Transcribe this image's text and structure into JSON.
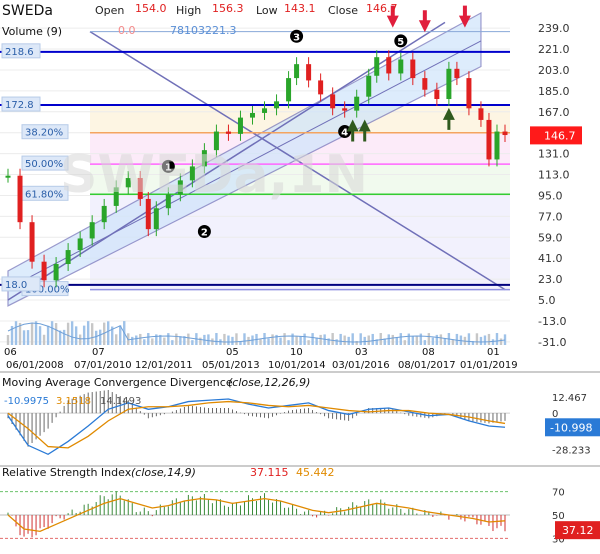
{
  "header": {
    "symbol": "SWEDa",
    "open_label": "Open",
    "open": "154.0",
    "high_label": "High",
    "high": "156.3",
    "low_label": "Low",
    "low": "143.1",
    "close_label": "Close",
    "close": "146.7",
    "volume_label": "Volume (9)",
    "volume_values": [
      "0.0",
      "78103221.3"
    ],
    "watermark": "SWEDa,1N"
  },
  "colors": {
    "up": "#2aa52a",
    "down": "#e02020",
    "channel_fill": "#cfe4fb",
    "hline": "#0000cc",
    "fib_orange": "#f4a460",
    "fib_pink": "#ff66ff",
    "fib_green": "#33cc33",
    "trend_line": "#7070b8",
    "price_badge": "#ff1a1a"
  },
  "chart_data": [
    {
      "type": "candlestick",
      "title": "SWEDa",
      "ylim": [
        -38,
        246
      ],
      "y_ticks": [
        "239.0",
        "221.0",
        "203.0",
        "185.0",
        "167.0",
        "149.0",
        "131.0",
        "113.0",
        "95.0",
        "77.0",
        "59.0",
        "41.0",
        "23.0",
        "5.0",
        "-13.0",
        "-31.0"
      ],
      "x_ticks": [
        "06",
        "06/01/2008",
        "07",
        "07/01/2010",
        "12/01/2011",
        "05",
        "05/01/2013",
        "10",
        "10/01/2014",
        "03",
        "03/01/2016",
        "08",
        "08/01/2017",
        "01",
        "01/01/2019"
      ],
      "last_price": "146.7",
      "left_labels": [
        "218.6",
        "172.8",
        "18.0"
      ],
      "fib_levels": [
        {
          "label": "38.20%",
          "value": 149
        },
        {
          "label": "50.00%",
          "value": 122
        },
        {
          "label": "61.80%",
          "value": 96
        },
        {
          "label": "100.00%",
          "value": 14
        }
      ],
      "horizontal_lines": [
        236,
        218.6,
        172.8,
        18.0
      ],
      "markers": [
        {
          "label": "1",
          "kind": "circle-label"
        },
        {
          "label": "2",
          "kind": "circle-label"
        },
        {
          "label": "3",
          "kind": "circle-label"
        },
        {
          "label": "4",
          "kind": "circle-label"
        },
        {
          "label": "5",
          "kind": "circle-label"
        }
      ],
      "price_points": [
        [
          0,
          112
        ],
        [
          3,
          72
        ],
        [
          6,
          38
        ],
        [
          9,
          22
        ],
        [
          12,
          36
        ],
        [
          15,
          48
        ],
        [
          18,
          58
        ],
        [
          21,
          72
        ],
        [
          24,
          86
        ],
        [
          27,
          102
        ],
        [
          30,
          110
        ],
        [
          33,
          92
        ],
        [
          35,
          66
        ],
        [
          37,
          84
        ],
        [
          40,
          96
        ],
        [
          43,
          108
        ],
        [
          46,
          120
        ],
        [
          49,
          134
        ],
        [
          52,
          150
        ],
        [
          55,
          148
        ],
        [
          58,
          162
        ],
        [
          61,
          166
        ],
        [
          64,
          170
        ],
        [
          67,
          176
        ],
        [
          70,
          196
        ],
        [
          72,
          208
        ],
        [
          75,
          194
        ],
        [
          78,
          182
        ],
        [
          81,
          170
        ],
        [
          84,
          168
        ],
        [
          87,
          180
        ],
        [
          90,
          198
        ],
        [
          92,
          214
        ],
        [
          95,
          200
        ],
        [
          98,
          212
        ],
        [
          101,
          196
        ],
        [
          104,
          186
        ],
        [
          107,
          178
        ],
        [
          110,
          204
        ],
        [
          112,
          196
        ],
        [
          115,
          170
        ],
        [
          118,
          160
        ],
        [
          120,
          126
        ],
        [
          122,
          150
        ],
        [
          124,
          147
        ]
      ]
    },
    {
      "type": "line",
      "title": "Moving Average Convergence Divergence",
      "params": "(close,12,26,9)",
      "ylim": [
        -38,
        18
      ],
      "y_ticks": [
        "12.467",
        "0",
        "-28.233"
      ],
      "readouts": [
        "-10.9975",
        "3.1518",
        "14.1493"
      ],
      "last_value": "-10.998",
      "series": [
        {
          "values": [
            [
              0,
              -2
            ],
            [
              5,
              -25
            ],
            [
              10,
              -32
            ],
            [
              15,
              -22
            ],
            [
              20,
              -10
            ],
            [
              25,
              3
            ],
            [
              30,
              8
            ],
            [
              35,
              3
            ],
            [
              40,
              5
            ],
            [
              45,
              9
            ],
            [
              50,
              10
            ],
            [
              55,
              11
            ],
            [
              60,
              7
            ],
            [
              65,
              4
            ],
            [
              70,
              6
            ],
            [
              75,
              8
            ],
            [
              80,
              2
            ],
            [
              85,
              -1
            ],
            [
              90,
              3
            ],
            [
              95,
              4
            ],
            [
              100,
              1
            ],
            [
              105,
              -2
            ],
            [
              110,
              -1
            ],
            [
              115,
              -6
            ],
            [
              120,
              -10
            ],
            [
              124,
              -11
            ]
          ]
        },
        {
          "values": [
            [
              0,
              0
            ],
            [
              5,
              -12
            ],
            [
              10,
              -26
            ],
            [
              15,
              -27
            ],
            [
              20,
              -18
            ],
            [
              25,
              -6
            ],
            [
              30,
              3
            ],
            [
              35,
              5
            ],
            [
              40,
              5
            ],
            [
              45,
              6
            ],
            [
              50,
              8
            ],
            [
              55,
              9
            ],
            [
              60,
              8
            ],
            [
              65,
              6
            ],
            [
              70,
              5
            ],
            [
              75,
              6
            ],
            [
              80,
              4
            ],
            [
              85,
              2
            ],
            [
              90,
              1
            ],
            [
              95,
              2
            ],
            [
              100,
              2
            ],
            [
              105,
              0
            ],
            [
              110,
              -1
            ],
            [
              115,
              -3
            ],
            [
              120,
              -6
            ],
            [
              124,
              -8
            ]
          ]
        }
      ]
    },
    {
      "type": "line",
      "title": "Relative Strength Index",
      "params": "(close,14,9)",
      "ylim": [
        20,
        80
      ],
      "y_ticks": [
        "70",
        "50",
        "30"
      ],
      "annotations": [
        "37.115",
        "45.442"
      ],
      "last_value": "37.12",
      "series": [
        {
          "values": [
            [
              0,
              52
            ],
            [
              4,
              30
            ],
            [
              8,
              36
            ],
            [
              12,
              46
            ],
            [
              16,
              52
            ],
            [
              20,
              58
            ],
            [
              24,
              66
            ],
            [
              28,
              68
            ],
            [
              32,
              55
            ],
            [
              36,
              52
            ],
            [
              40,
              60
            ],
            [
              44,
              64
            ],
            [
              48,
              66
            ],
            [
              52,
              62
            ],
            [
              56,
              58
            ],
            [
              60,
              64
            ],
            [
              64,
              66
            ],
            [
              68,
              60
            ],
            [
              72,
              55
            ],
            [
              76,
              50
            ],
            [
              80,
              52
            ],
            [
              84,
              56
            ],
            [
              88,
              60
            ],
            [
              92,
              62
            ],
            [
              96,
              57
            ],
            [
              100,
              54
            ],
            [
              104,
              52
            ],
            [
              108,
              50
            ],
            [
              112,
              48
            ],
            [
              116,
              46
            ],
            [
              120,
              40
            ],
            [
              124,
              37
            ]
          ]
        },
        {
          "values": [
            [
              0,
              50
            ],
            [
              4,
              38
            ],
            [
              8,
              36
            ],
            [
              12,
              42
            ],
            [
              16,
              48
            ],
            [
              20,
              54
            ],
            [
              24,
              60
            ],
            [
              28,
              64
            ],
            [
              32,
              60
            ],
            [
              36,
              56
            ],
            [
              40,
              58
            ],
            [
              44,
              62
            ],
            [
              48,
              64
            ],
            [
              52,
              63
            ],
            [
              56,
              60
            ],
            [
              60,
              62
            ],
            [
              64,
              64
            ],
            [
              68,
              62
            ],
            [
              72,
              58
            ],
            [
              76,
              54
            ],
            [
              80,
              52
            ],
            [
              84,
              54
            ],
            [
              88,
              57
            ],
            [
              92,
              60
            ],
            [
              96,
              58
            ],
            [
              100,
              56
            ],
            [
              104,
              53
            ],
            [
              108,
              51
            ],
            [
              112,
              49
            ],
            [
              116,
              47
            ],
            [
              120,
              44
            ],
            [
              124,
              45
            ]
          ]
        }
      ]
    }
  ]
}
